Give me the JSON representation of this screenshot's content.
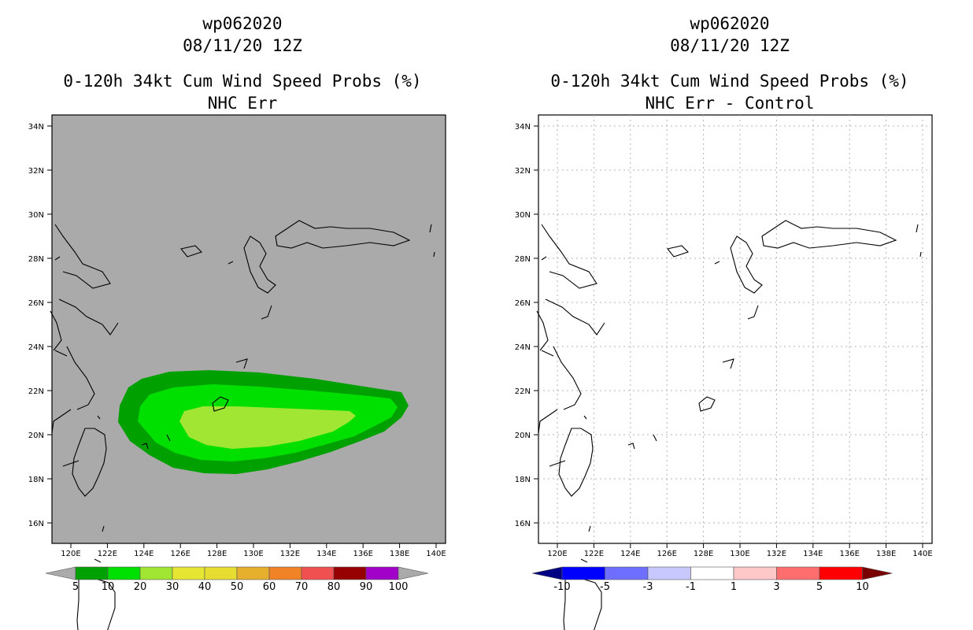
{
  "left": {
    "title_line1": "wp062020",
    "title_line2": "08/11/20 12Z",
    "title_line3": "0-120h 34kt Cum Wind Speed Probs (%)",
    "title_line4": "NHC Err",
    "background_color": "#aaaaaa",
    "colorbar": {
      "colors": [
        "#aaaaaa",
        "#00a000",
        "#00e000",
        "#a0e632",
        "#e6e632",
        "#e6dc32",
        "#e6af2d",
        "#f08228",
        "#f05050",
        "#960000",
        "#a000c8",
        "#aaaaaa"
      ],
      "labels": [
        "5",
        "10",
        "20",
        "30",
        "40",
        "50",
        "60",
        "70",
        "80",
        "90",
        "100"
      ]
    },
    "contour_colors": {
      "p5": "#00a000",
      "p10": "#00e000",
      "p20": "#a0e632"
    }
  },
  "right": {
    "title_line1": "wp062020",
    "title_line2": "08/11/20 12Z",
    "title_line3": "0-120h 34kt Cum Wind Speed Probs (%)",
    "title_line4": "NHC Err - Control",
    "background_color": "#ffffff",
    "colorbar": {
      "colors": [
        "#000082",
        "#0000ff",
        "#6e6eff",
        "#c8c8ff",
        "#ffffff",
        "#ffc8c8",
        "#ff6e6e",
        "#ff0000",
        "#780000"
      ],
      "labels": [
        "-10",
        "-5",
        "-3",
        "-1",
        "1",
        "3",
        "5",
        "10"
      ]
    }
  },
  "axes": {
    "lat_labels": [
      "34N",
      "32N",
      "30N",
      "28N",
      "26N",
      "24N",
      "22N",
      "20N",
      "18N",
      "16N"
    ],
    "lon_labels": [
      "120E",
      "122E",
      "124E",
      "126E",
      "128E",
      "130E",
      "132E",
      "134E",
      "136E",
      "138E",
      "140E"
    ]
  }
}
